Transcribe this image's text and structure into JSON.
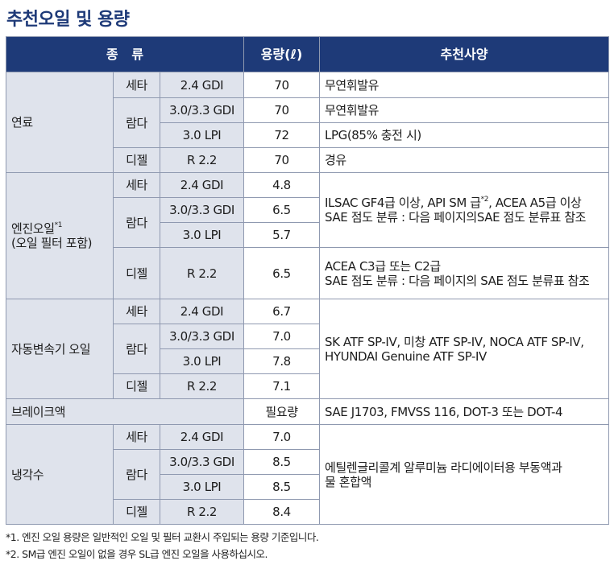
{
  "title": "추천오일 및 용량",
  "header": {
    "type": "종   류",
    "capacity": "용량(ℓ)",
    "recommendation": "추천사양"
  },
  "fuel": {
    "category": "연료",
    "rows": [
      {
        "model": "세타",
        "engine": "2.4 GDI",
        "value": "70",
        "spec": "무연휘발유"
      },
      {
        "model": "람다",
        "engine": "3.0/3.3 GDI",
        "value": "70",
        "spec": "무연휘발유"
      },
      {
        "engine": "3.0 LPI",
        "value": "72",
        "spec": "LPG(85% 충전 시)"
      },
      {
        "model": "디젤",
        "engine": "R 2.2",
        "value": "70",
        "spec": "경유"
      }
    ]
  },
  "engine_oil": {
    "category_line1": "엔진오일",
    "category_sup": "*1",
    "category_line2": "(오일 필터 포함)",
    "rows": [
      {
        "model": "세타",
        "engine": "2.4 GDI",
        "value": "4.8"
      },
      {
        "model": "람다",
        "engine": "3.0/3.3 GDI",
        "value": "6.5"
      },
      {
        "engine": "3.0 LPI",
        "value": "5.7"
      },
      {
        "model": "디젤",
        "engine": "R 2.2",
        "value": "6.5"
      }
    ],
    "gasoline_spec_line1_a": "ILSAC GF4급 이상, API SM 급",
    "gasoline_spec_sup": "*2",
    "gasoline_spec_line1_b": ", ACEA A5급 이상",
    "gasoline_spec_line2": "SAE 점도 분류 : 다음 페이지의SAE 점도 분류표 참조",
    "diesel_spec_line1": "ACEA C3급 또는 C2급",
    "diesel_spec_line2": "SAE 점도 분류 : 다음 페이지의 SAE 점도 분류표 참조"
  },
  "transmission": {
    "category": "자동변속기 오일",
    "rows": [
      {
        "model": "세타",
        "engine": "2.4 GDI",
        "value": "6.7"
      },
      {
        "model": "람다",
        "engine": "3.0/3.3 GDI",
        "value": "7.0"
      },
      {
        "engine": "3.0 LPI",
        "value": "7.8"
      },
      {
        "model": "디젤",
        "engine": "R 2.2",
        "value": "7.1"
      }
    ],
    "spec_line1": "SK ATF SP-IV, 미창 ATF SP-IV, NOCA ATF SP-IV,",
    "spec_line2": "HYUNDAI Genuine ATF SP-IV"
  },
  "brake": {
    "category": "브레이크액",
    "value": "필요량",
    "spec": "SAE J1703, FMVSS 116, DOT-3 또는 DOT-4"
  },
  "coolant": {
    "category": "냉각수",
    "rows": [
      {
        "model": "세타",
        "engine": "2.4 GDI",
        "value": "7.0"
      },
      {
        "model": "람다",
        "engine": "3.0/3.3 GDI",
        "value": "8.5"
      },
      {
        "engine": "3.0 LPI",
        "value": "8.5"
      },
      {
        "model": "디젤",
        "engine": "R 2.2",
        "value": "8.4"
      }
    ],
    "spec_line1": "에틸렌글리콜계 알루미늄 라디에이터용 부동액과",
    "spec_line2": "물 혼합액"
  },
  "notes": [
    "*1. 엔진 오일 용량은 일반적인 오일 및 필터 교환시 주입되는 용량 기준입니다.",
    "*2. SM급 엔진 오일이 없을 경우 SL급 엔진 오일을 사용하십시오."
  ]
}
